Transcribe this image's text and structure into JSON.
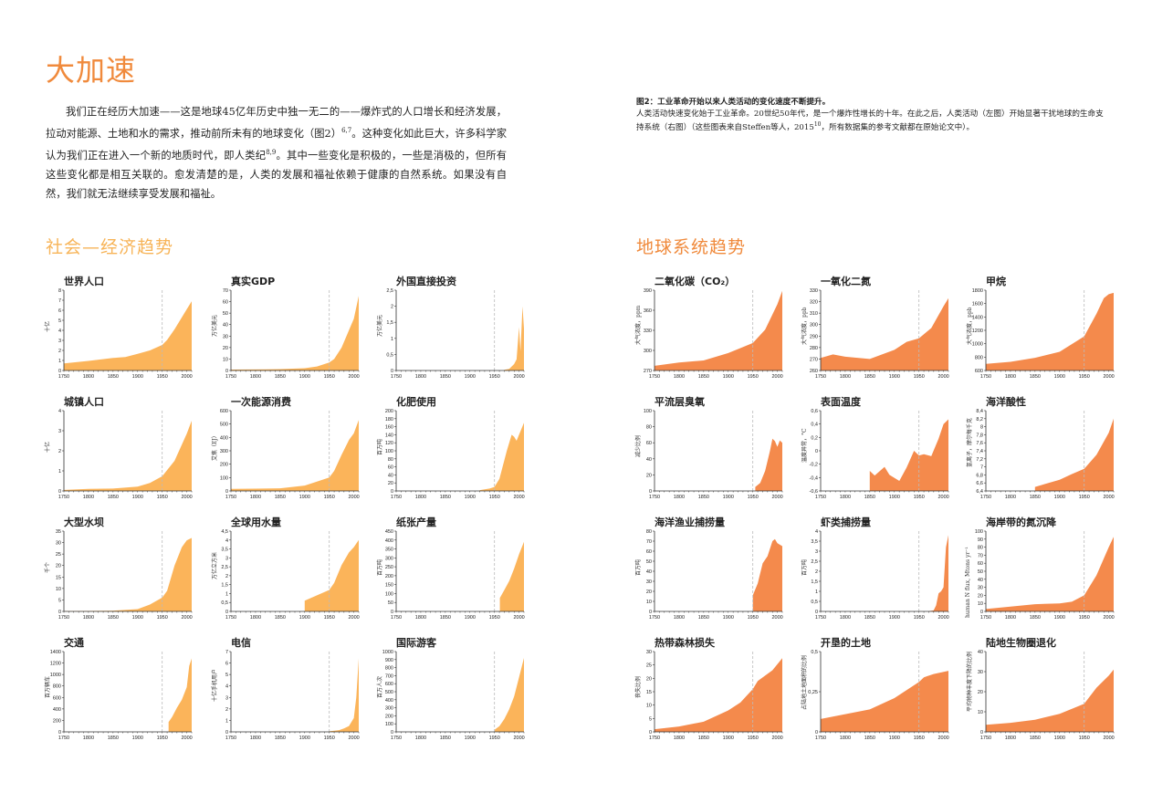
{
  "page": {
    "title": "大加速",
    "intro_parts": [
      "我们正在经历大加速——这是地球45亿年历史中独一无二的——爆炸式的人口增长和经济发展，拉动对能源、土地和水的需求，推动前所未有的地球变化（图2）",
      "6,7",
      "。这种变化如此巨大，许多科学家认为我们正在进入一个新的地质时代，即人类纪",
      "8,9",
      "。其中一些变化是积极的，一些是消极的，但所有这些变化都是相互关联的。愈发清楚的是，人类的发展和福祉依赖于健康的自然系统。如果没有自然，我们就无法继续享受发展和福祉。"
    ],
    "caption": {
      "title": "图2：工业革命开始以来人类活动的变化速度不断提升。",
      "body_1": "人类活动快速变化始于工业革命。20世纪50年代，是一个爆炸性增长的十年。在此之后，人类活动（左图）开始显著干扰地球的生命支持系统（右图）（这些图表来自Steffen等人，2015",
      "sup": "10",
      "body_2": "，所有数据集的参考文献都在原始论文中）。"
    },
    "sections": {
      "socio": "社会—经济趋势",
      "earth": "地球系统趋势"
    }
  },
  "colors": {
    "title_orange": "#f08a3c",
    "socio_fill": "#fbb45a",
    "earth_fill": "#f48a4c",
    "marker_line": "#bbbbbb"
  },
  "chart_data": [
    {
      "id": "world-population",
      "group": "socio",
      "type": "area",
      "title": "世界人口",
      "ylabel": "十亿",
      "ylim": [
        0,
        8
      ],
      "yticks": [
        0,
        1,
        2,
        3,
        4,
        5,
        6,
        7,
        8
      ],
      "x": [
        1750,
        1800,
        1850,
        1875,
        1900,
        1925,
        1950,
        1960,
        1975,
        2000,
        2010
      ],
      "values": [
        0.7,
        0.95,
        1.25,
        1.35,
        1.65,
        2.0,
        2.55,
        3.05,
        4.1,
        6.1,
        6.9
      ]
    },
    {
      "id": "real-gdp",
      "group": "socio",
      "type": "area",
      "title": "真实GDP",
      "ylabel": "万亿美元",
      "ylim": [
        0,
        70
      ],
      "yticks": [
        0,
        10,
        20,
        30,
        40,
        50,
        60,
        70
      ],
      "x": [
        1750,
        1820,
        1850,
        1900,
        1925,
        1950,
        1960,
        1975,
        1990,
        2000,
        2010
      ],
      "values": [
        0.8,
        1.0,
        1.2,
        2.0,
        3.5,
        7,
        10,
        20,
        35,
        45,
        65
      ]
    },
    {
      "id": "foreign-direct-investment",
      "group": "socio",
      "type": "area",
      "title": "外国直接投资",
      "ylabel": "万亿美元",
      "ylim": [
        0,
        2.5
      ],
      "yticks": [
        "0",
        "0,5",
        "1",
        "1,5",
        "2",
        "2,5"
      ],
      "x": [
        1970,
        1980,
        1990,
        1995,
        2000,
        2003,
        2007,
        2010
      ],
      "values": [
        0.02,
        0.05,
        0.2,
        0.35,
        1.35,
        0.6,
        2.0,
        1.3
      ]
    },
    {
      "id": "urban-population",
      "group": "socio",
      "type": "area",
      "title": "城镇人口",
      "ylabel": "十亿",
      "ylim": [
        0,
        4
      ],
      "yticks": [
        0,
        1,
        2,
        3,
        4
      ],
      "x": [
        1750,
        1800,
        1850,
        1900,
        1925,
        1950,
        1975,
        2000,
        2010
      ],
      "values": [
        0.05,
        0.1,
        0.12,
        0.22,
        0.4,
        0.73,
        1.5,
        2.85,
        3.5
      ]
    },
    {
      "id": "primary-energy-use",
      "group": "socio",
      "type": "area",
      "title": "一次能源消费",
      "ylabel": "艾焦（EJ）",
      "ylim": [
        0,
        600
      ],
      "yticks": [
        0,
        100,
        200,
        300,
        400,
        500,
        600
      ],
      "x": [
        1750,
        1800,
        1850,
        1900,
        1925,
        1950,
        1960,
        1975,
        1990,
        2000,
        2010
      ],
      "values": [
        15,
        17,
        20,
        40,
        70,
        100,
        150,
        270,
        380,
        430,
        530
      ]
    },
    {
      "id": "fertilizer-consumption",
      "group": "socio",
      "type": "area",
      "title": "化肥使用",
      "ylabel": "百万吨",
      "ylim": [
        0,
        200
      ],
      "yticks": [
        0,
        20,
        40,
        60,
        80,
        100,
        120,
        140,
        160,
        180,
        200
      ],
      "x": [
        1920,
        1940,
        1950,
        1960,
        1975,
        1985,
        1990,
        1995,
        2000,
        2010
      ],
      "values": [
        2,
        6,
        10,
        30,
        100,
        140,
        135,
        125,
        140,
        170
      ]
    },
    {
      "id": "large-dams",
      "group": "socio",
      "type": "area",
      "title": "大型水坝",
      "ylabel": "千个",
      "ylim": [
        0,
        35
      ],
      "yticks": [
        0,
        5,
        10,
        15,
        20,
        25,
        30,
        35
      ],
      "x": [
        1750,
        1850,
        1900,
        1925,
        1950,
        1960,
        1975,
        1990,
        2000,
        2010
      ],
      "values": [
        0.1,
        0.3,
        1.0,
        3,
        6,
        9,
        20,
        28,
        31,
        32
      ]
    },
    {
      "id": "water-use",
      "group": "socio",
      "type": "area",
      "title": "全球用水量",
      "ylabel": "万亿立方米",
      "ylim": [
        0,
        4.5
      ],
      "yticks": [
        "0",
        "0,5",
        "1",
        "1,5",
        "2",
        "2,5",
        "3",
        "3,5",
        "4",
        "4,5"
      ],
      "x": [
        1900,
        1925,
        1950,
        1960,
        1975,
        1990,
        2000,
        2010
      ],
      "values": [
        0.6,
        0.9,
        1.2,
        1.6,
        2.6,
        3.3,
        3.6,
        4.0
      ]
    },
    {
      "id": "paper-production",
      "group": "socio",
      "type": "area",
      "title": "纸张产量",
      "ylabel": "百万吨",
      "ylim": [
        0,
        450
      ],
      "yticks": [
        0,
        50,
        100,
        150,
        200,
        250,
        300,
        350,
        400,
        450
      ],
      "x": [
        1961,
        1970,
        1980,
        1990,
        2000,
        2010
      ],
      "values": [
        75,
        120,
        170,
        240,
        320,
        390
      ]
    },
    {
      "id": "transportation",
      "group": "socio",
      "type": "area",
      "title": "交通",
      "ylabel": "百万辆车",
      "ylim": [
        0,
        1400
      ],
      "yticks": [
        0,
        200,
        400,
        600,
        800,
        1000,
        1200,
        1400
      ],
      "x": [
        1963,
        1970,
        1980,
        1990,
        2000,
        2005,
        2010
      ],
      "values": [
        170,
        260,
        420,
        560,
        780,
        1150,
        1280
      ]
    },
    {
      "id": "telecommunications",
      "group": "socio",
      "type": "area",
      "title": "电信",
      "ylabel": "十亿手机用户",
      "ylim": [
        0,
        7
      ],
      "yticks": [
        0,
        1,
        2,
        3,
        4,
        5,
        6,
        7
      ],
      "x": [
        1950,
        1970,
        1980,
        1990,
        2000,
        2005,
        2010
      ],
      "values": [
        0.05,
        0.15,
        0.3,
        0.5,
        1.2,
        3.0,
        6.4
      ]
    },
    {
      "id": "international-tourism",
      "group": "socio",
      "type": "area",
      "title": "国际游客",
      "ylabel": "百万人次",
      "ylim": [
        0,
        1000
      ],
      "yticks": [
        0,
        100,
        200,
        300,
        400,
        500,
        600,
        700,
        800,
        900,
        1000
      ],
      "x": [
        1950,
        1960,
        1970,
        1980,
        1990,
        2000,
        2010
      ],
      "values": [
        25,
        70,
        160,
        280,
        440,
        680,
        920
      ]
    },
    {
      "id": "carbon-dioxide",
      "group": "earth",
      "type": "area",
      "title": "二氧化碳（CO₂）",
      "ylabel": "大气浓度，ppm",
      "ylim": [
        270,
        390
      ],
      "yticks": [
        270,
        300,
        330,
        360,
        390
      ],
      "x": [
        1750,
        1800,
        1850,
        1900,
        1950,
        1975,
        2000,
        2010
      ],
      "values": [
        277,
        282,
        285,
        296,
        311,
        331,
        369,
        389
      ]
    },
    {
      "id": "nitrous-oxide",
      "group": "earth",
      "type": "area",
      "title": "一氧化二氮",
      "ylabel": "大气浓度，ppb",
      "ylim": [
        260,
        330
      ],
      "yticks": [
        260,
        270,
        280,
        290,
        300,
        310,
        320,
        330
      ],
      "x": [
        1750,
        1775,
        1800,
        1850,
        1900,
        1925,
        1950,
        1975,
        2000,
        2010
      ],
      "values": [
        271,
        274,
        272,
        270,
        278,
        285,
        288,
        297,
        316,
        323
      ]
    },
    {
      "id": "methane",
      "group": "earth",
      "type": "area",
      "title": "甲烷",
      "ylabel": "大气浓度，ppb",
      "ylim": [
        600,
        1800
      ],
      "yticks": [
        600,
        800,
        1000,
        1200,
        1400,
        1600,
        1800
      ],
      "x": [
        1750,
        1800,
        1850,
        1900,
        1950,
        1975,
        1990,
        2000,
        2010
      ],
      "values": [
        700,
        730,
        790,
        880,
        1110,
        1450,
        1680,
        1740,
        1760
      ]
    },
    {
      "id": "stratospheric-ozone",
      "group": "earth",
      "type": "area",
      "title": "平流层臭氧",
      "ylabel": "减少比例",
      "ylim": [
        0,
        100
      ],
      "yticks": [
        0,
        20,
        40,
        60,
        80,
        100
      ],
      "x": [
        1955,
        1965,
        1975,
        1985,
        1990,
        1995,
        2000,
        2005,
        2010
      ],
      "values": [
        5,
        10,
        25,
        50,
        65,
        62,
        55,
        63,
        60
      ]
    },
    {
      "id": "surface-temperature",
      "group": "earth",
      "type": "area",
      "title": "表面温度",
      "ylabel": "温度异常，°C",
      "ylim": [
        -0.6,
        0.6
      ],
      "yticks": [
        "-0,6",
        "-0,4",
        "-0,2",
        "0",
        "0,2",
        "0,4",
        "0,6"
      ],
      "x": [
        1850,
        1860,
        1880,
        1890,
        1910,
        1925,
        1940,
        1950,
        1960,
        1975,
        1990,
        2000,
        2010
      ],
      "values": [
        -0.3,
        -0.37,
        -0.24,
        -0.36,
        -0.45,
        -0.25,
        0,
        -0.07,
        -0.05,
        -0.08,
        0.18,
        0.4,
        0.47
      ]
    },
    {
      "id": "ocean-acidification",
      "group": "earth",
      "type": "area",
      "title": "海洋酸性",
      "ylabel": "氢离子，摩尔每千克",
      "ylim": [
        6.4,
        8.4
      ],
      "yticks": [
        "6,4",
        "6,6",
        "6,8",
        "7",
        "7,2",
        "7,4",
        "7,6",
        "7,8",
        "8",
        "8,2",
        "8,4"
      ],
      "x": [
        1850,
        1900,
        1925,
        1950,
        1975,
        2000,
        2010
      ],
      "values": [
        6.5,
        6.68,
        6.82,
        6.95,
        7.3,
        7.85,
        8.2
      ]
    },
    {
      "id": "marine-fish-capture",
      "group": "earth",
      "type": "area",
      "title": "海洋渔业捕捞量",
      "ylabel": "百万吨",
      "ylim": [
        0,
        80
      ],
      "yticks": [
        0,
        10,
        20,
        30,
        40,
        50,
        60,
        70,
        80
      ],
      "x": [
        1950,
        1960,
        1970,
        1980,
        1990,
        1995,
        2000,
        2010
      ],
      "values": [
        16,
        28,
        48,
        55,
        70,
        72,
        68,
        65
      ]
    },
    {
      "id": "shrimp-aquaculture",
      "group": "earth",
      "type": "area",
      "title": "虾类捕捞量",
      "ylabel": "百万吨",
      "ylim": [
        0,
        4
      ],
      "yticks": [
        "0",
        "0,5",
        "1",
        "1,5",
        "2",
        "2,5",
        "3",
        "3,5",
        "4"
      ],
      "x": [
        1970,
        1980,
        1985,
        1990,
        1995,
        2000,
        2005,
        2010
      ],
      "values": [
        0.01,
        0.05,
        0.3,
        0.9,
        1.0,
        1.2,
        3.2,
        3.8
      ]
    },
    {
      "id": "nitrogen-to-coastal-zone",
      "group": "earth",
      "type": "area",
      "title": "海岸带的氮沉降",
      "ylabel": "human N flux, Mtons yr⁻¹",
      "ylim": [
        0,
        100
      ],
      "yticks": [
        0,
        10,
        20,
        30,
        40,
        50,
        60,
        70,
        80,
        90,
        100
      ],
      "x": [
        1750,
        1800,
        1850,
        1900,
        1925,
        1950,
        1975,
        2000,
        2010
      ],
      "values": [
        3,
        6,
        9,
        10,
        12,
        20,
        45,
        80,
        93
      ]
    },
    {
      "id": "tropical-forest-loss",
      "group": "earth",
      "type": "area",
      "title": "热带森林损失",
      "ylabel": "丧失比例",
      "ylim": [
        0,
        30
      ],
      "yticks": [
        0,
        5,
        10,
        15,
        20,
        25,
        30
      ],
      "x": [
        1750,
        1800,
        1850,
        1900,
        1925,
        1950,
        1960,
        1990,
        2010
      ],
      "values": [
        1,
        2,
        3.8,
        8,
        11,
        16,
        19,
        23,
        27.5
      ]
    },
    {
      "id": "domesticated-land",
      "group": "earth",
      "type": "area",
      "title": "开垦的土地",
      "ylabel": "占陆地土地面积的比例",
      "ylim": [
        0,
        0.5
      ],
      "yticks": [
        "0",
        "0,25",
        "0,5"
      ],
      "x": [
        1750,
        1800,
        1850,
        1900,
        1950,
        1960,
        1980,
        2010
      ],
      "values": [
        0.08,
        0.11,
        0.14,
        0.21,
        0.31,
        0.34,
        0.36,
        0.38
      ]
    },
    {
      "id": "terrestrial-biosphere-degradation",
      "group": "earth",
      "type": "area",
      "title": "陆地生物圈退化",
      "ylabel": "平均物种丰度下降的比例",
      "ylim": [
        0,
        40
      ],
      "yticks": [
        0,
        10,
        20,
        30,
        40
      ],
      "x": [
        1750,
        1800,
        1850,
        1900,
        1950,
        1975,
        2000,
        2010
      ],
      "values": [
        3.5,
        4.5,
        6,
        9,
        14,
        22,
        28,
        31
      ]
    }
  ],
  "axis": {
    "xticks": [
      1750,
      1800,
      1850,
      1900,
      1950,
      2000
    ],
    "marker_year": 1950
  }
}
